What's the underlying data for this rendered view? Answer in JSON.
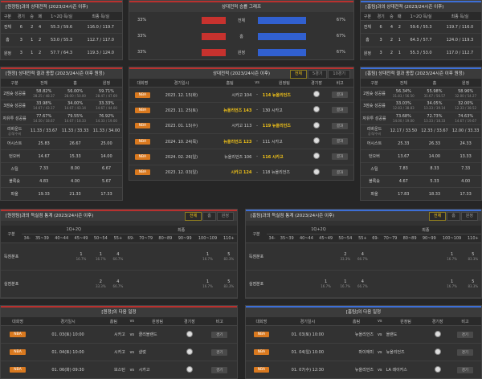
{
  "away_record": {
    "title": "[원정팀]과의 상대전적 (2023/24시즌 이후)",
    "columns": [
      "구분",
      "경기",
      "승",
      "패",
      "1~2Q 득/실",
      "최종 득/실"
    ],
    "rows": [
      [
        "전체",
        "6",
        "2",
        "4",
        "55.3 / 59.6",
        "116.0 / 119.7"
      ],
      [
        "홈",
        "3",
        "1",
        "2",
        "53.0 / 55.3",
        "112.7 / 117.0"
      ],
      [
        "원정",
        "3",
        "1",
        "2",
        "57.7 / 64.3",
        "119.3 / 124.0"
      ]
    ]
  },
  "win_graph": {
    "title": "상대전적 승률 그래프",
    "rows": [
      {
        "label": "전체",
        "away": 33,
        "away_label": "33%",
        "home": 67,
        "home_label": "67%"
      },
      {
        "label": "홈",
        "away": 33,
        "away_label": "33%",
        "home": 67,
        "home_label": "67%"
      },
      {
        "label": "원정",
        "away": 33,
        "away_label": "33%",
        "home": 67,
        "home_label": "67%"
      }
    ]
  },
  "home_record": {
    "title": "[홈팀]과의 상대전적 (2023/24시즌 이후)",
    "columns": [
      "구분",
      "경기",
      "승",
      "패",
      "1~2Q 득/실",
      "최종 득/실"
    ],
    "rows": [
      [
        "전체",
        "6",
        "4",
        "2",
        "59.6 / 55.3",
        "119.7 / 116.0"
      ],
      [
        "홈",
        "3",
        "2",
        "1",
        "64.3 / 57.7",
        "124.0 / 119.3"
      ],
      [
        "원정",
        "3",
        "2",
        "1",
        "55.3 / 53.0",
        "117.0 / 112.7"
      ]
    ]
  },
  "away_summary": {
    "title": "[원정] 상대전적 결과 종합 (2023/24시즌 이후 원정)",
    "columns": [
      "구분",
      "전체",
      "홈",
      "원정"
    ],
    "rows": [
      [
        "2점슛 성공률",
        [
          "58.82%",
          "28.25 / 48.37"
        ],
        [
          "56.00%",
          "28.00 / 50.00"
        ],
        [
          "59.71%",
          "28.47 / 47.69"
        ]
      ],
      [
        "3점슛 성공률",
        [
          "33.98%",
          "14.67 / 43.17"
        ],
        [
          "34.00%",
          "14.67 / 43.14"
        ],
        [
          "33.33%",
          "14.67 / 44.00"
        ]
      ],
      [
        "자유투 성공률",
        [
          "77.67%",
          "14.50 / 18.67"
        ],
        [
          "79.55%",
          "14.67 / 18.33"
        ],
        [
          "76.92%",
          "14.33 / 19.00"
        ]
      ],
      [
        [
          "리바운드",
          "공격/수비"
        ],
        "11.33 / 33.67",
        "11.33 / 33.33",
        "11.33 / 34.00"
      ],
      [
        "어시스트",
        "25.83",
        "26.67",
        "25.00"
      ],
      [
        "턴오버",
        "14.67",
        "15.33",
        "14.00"
      ],
      [
        "스틸",
        "7.33",
        "8.00",
        "6.67"
      ],
      [
        "블록슛",
        "4.83",
        "4.00",
        "5.67"
      ],
      [
        "파울",
        "19.33",
        "21.33",
        "17.33"
      ]
    ]
  },
  "results": {
    "title": "상대전적 (2023/24시즌 이후)",
    "tabs": [
      "전체",
      "5경기",
      "10경기"
    ],
    "columns": [
      "대회명",
      "경기일시",
      "홈팀",
      "vs",
      "원정팀",
      "경기장",
      "비고"
    ],
    "rows": [
      {
        "league": "NBA",
        "date": "2023. 12. 15(화)",
        "home": "시카고",
        "home_score": 104,
        "sep": "-",
        "away_score": 114,
        "away": "뉴올리언즈",
        "note": "결과"
      },
      {
        "league": "NBA",
        "date": "2023. 11. 25(토)",
        "home": "뉴올리언즈",
        "home_score": 143,
        "sep": "-",
        "away_score": 130,
        "away": "시카고",
        "note": "결과"
      },
      {
        "league": "NBA",
        "date": "2023. 01. 15(수)",
        "home": "시카고",
        "home_score": 113,
        "sep": "-",
        "away_score": 119,
        "away": "뉴올리언즈",
        "note": "결과"
      },
      {
        "league": "NBA",
        "date": "2024. 10. 24(목)",
        "home": "뉴올리언즈",
        "home_score": 123,
        "sep": "-",
        "away_score": 111,
        "away": "시카고",
        "note": "결과"
      },
      {
        "league": "NBA",
        "date": "2024. 02. 26(일)",
        "home": "뉴올리언즈",
        "home_score": 106,
        "sep": "-",
        "away_score": 116,
        "away": "시카고",
        "note": "결과"
      },
      {
        "league": "NBA",
        "date": "2023. 12. 03(일)",
        "home": "시카고",
        "home_score": 124,
        "sep": "-",
        "away_score": 118,
        "away": "뉴올리언즈",
        "note": "결과"
      }
    ]
  },
  "home_summary": {
    "title": "[홈팀] 상대전적 결과 종합 (2023/24시즌 이후 원정)",
    "columns": [
      "구분",
      "전체",
      "홈",
      "원정"
    ],
    "rows": [
      [
        "2점슛 성공률",
        [
          "56.34%",
          "31.83 / 56.50"
        ],
        [
          "55.98%",
          "31.67 / 56.57"
        ],
        [
          "58.96%",
          "32.00 / 54.27"
        ]
      ],
      [
        "3점슛 성공률",
        [
          "33.03%",
          "12.83 / 38.83"
        ],
        [
          "34.05%",
          "13.33 / 39.14"
        ],
        [
          "32.00%",
          "12.33 / 38.52"
        ]
      ],
      [
        "자유투 성공률",
        [
          "73.68%",
          "14.00 / 19.00"
        ],
        [
          "72.73%",
          "13.33 / 18.33"
        ],
        [
          "74.63%",
          "14.67 / 19.67"
        ]
      ],
      [
        [
          "리바운드",
          "공격/수비"
        ],
        "12.17 / 33.50",
        "12.33 / 33.67",
        "12.00 / 33.33"
      ],
      [
        "어시스트",
        "25.33",
        "26.33",
        "24.33"
      ],
      [
        "턴오버",
        "13.67",
        "14.00",
        "13.33"
      ],
      [
        "스틸",
        "7.83",
        "8.33",
        "7.33"
      ],
      [
        "블록슛",
        "4.67",
        "5.33",
        "4.00"
      ],
      [
        "파울",
        "17.83",
        "18.33",
        "17.33"
      ]
    ]
  },
  "away_dist": {
    "title": "[원정팀]과의 득실점 통계 (2023/24시즌 이후)",
    "tabs": [
      "전체",
      "홈",
      "원정"
    ],
    "head": [
      "구분",
      "1Q+2Q",
      "최종"
    ],
    "bins": [
      "34-",
      "35~39",
      "40~44",
      "45~49",
      "50~54",
      "55+",
      "69-",
      "70~79",
      "80~89",
      "90~99",
      "100~109",
      "110+"
    ],
    "rows": [
      [
        "득점분포",
        null,
        null,
        null,
        [
          "1",
          "16.7%"
        ],
        [
          "1",
          "16.7%"
        ],
        [
          "4",
          "66.7%"
        ],
        null,
        null,
        null,
        null,
        [
          "1",
          "16.7%"
        ],
        [
          "5",
          "83.3%"
        ]
      ],
      [
        "실점분포",
        null,
        null,
        null,
        null,
        [
          "2",
          "33.3%"
        ],
        [
          "4",
          "66.7%"
        ],
        null,
        null,
        null,
        null,
        [
          "1",
          "16.7%"
        ],
        [
          "5",
          "83.3%"
        ]
      ]
    ]
  },
  "home_dist": {
    "title": "[홈팀]과의 득실점 통계 (2023/24시즌 이후)",
    "tabs": [
      "전체",
      "홈",
      "원정"
    ],
    "head": [
      "구분",
      "1Q+2Q",
      "최종"
    ],
    "bins": [
      "34-",
      "35~39",
      "40~44",
      "45~49",
      "50~54",
      "55+",
      "69-",
      "70~79",
      "80~89",
      "90~99",
      "100~109",
      "110+"
    ],
    "rows": [
      [
        "득점분포",
        null,
        null,
        null,
        null,
        [
          "2",
          "33.3%"
        ],
        [
          "4",
          "66.7%"
        ],
        null,
        null,
        null,
        null,
        [
          "1",
          "16.7%"
        ],
        [
          "5",
          "83.3%"
        ]
      ],
      [
        "실점분포",
        null,
        null,
        null,
        [
          "1",
          "16.7%"
        ],
        [
          "1",
          "16.7%"
        ],
        [
          "4",
          "66.7%"
        ],
        null,
        null,
        null,
        null,
        [
          "1",
          "16.7%"
        ],
        [
          "5",
          "83.3%"
        ]
      ]
    ]
  },
  "away_schedule": {
    "title": "[원정]의 다음 일정",
    "columns": [
      "대회명",
      "경기일시",
      "홈팀",
      "vs",
      "원정팀",
      "경기장",
      "비고"
    ],
    "rows": [
      {
        "league": "NBA",
        "date": "01. 03(토) 10:00",
        "home": "시카고",
        "sep": "vs",
        "away": "클리블랜드",
        "note": "경기"
      },
      {
        "league": "NBA",
        "date": "01. 04(토) 10:00",
        "home": "시카고",
        "sep": "vs",
        "away": "샬럿",
        "note": "경기"
      },
      {
        "league": "NBA",
        "date": "01. 06(화) 09:30",
        "home": "보스턴",
        "sep": "vs",
        "away": "시카고",
        "note": "경기"
      }
    ]
  },
  "home_schedule": {
    "title": "[홈팀]의 다음 일정",
    "columns": [
      "대회명",
      "경기일시",
      "홈팀",
      "vs",
      "원정팀",
      "경기장",
      "비고"
    ],
    "rows": [
      {
        "league": "NBA",
        "date": "01. 03(토) 10:00",
        "home": "뉴올리언즈",
        "sep": "vs",
        "away": "올랜도",
        "note": "경기"
      },
      {
        "league": "NBA",
        "date": "01. 04(일) 10:00",
        "home": "마이애미",
        "sep": "vs",
        "away": "뉴올리언즈",
        "note": "경기"
      },
      {
        "league": "NBA",
        "date": "01. 07(수) 12:30",
        "home": "뉴올리언즈",
        "sep": "vs",
        "away": "LA 레이커스",
        "note": "경기"
      }
    ]
  }
}
